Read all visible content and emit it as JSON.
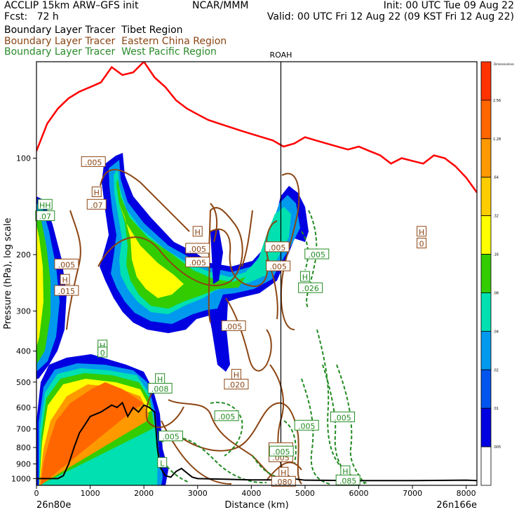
{
  "header": {
    "left_line1": "ACCLIP 15km ARW–GFS init",
    "left_line2": "Fcst:   72 h",
    "center_line1": "NCAR/MMM",
    "right_line1": "Init: 00 UTC Tue 09 Aug 22",
    "right_line2": "Valid: 00 UTC Fri 12 Aug 22 (09 KST Fri 12 Aug 22)"
  },
  "legend": {
    "tibet": "Boundary Layer Tracer  Tibet Region",
    "eastchina": "Boundary Layer Tracer  Eastern China Region",
    "wpacific": "Boundary Layer Tracer  West Pacific Region"
  },
  "colors": {
    "tropopause": "#ff0000",
    "terrain": "#000000",
    "eastchina": "#8b4513",
    "wpacific": "#228b22",
    "marker": "#000000"
  },
  "chart_data": {
    "type": "heatmap",
    "xlabel": "Distance (km)",
    "ylabel": "Pressure (hPa), log scale",
    "y_scale": "log",
    "xlim": [
      0,
      8200
    ],
    "ylim": [
      1050,
      50
    ],
    "x_ticks": [
      "0",
      "1000",
      "2000",
      "3000",
      "4000",
      "5000",
      "6000",
      "7000",
      "8000"
    ],
    "y_ticks": [
      "100",
      "200",
      "300",
      "400",
      "500",
      "600",
      "700",
      "800",
      "900",
      "1000"
    ],
    "start_label": "26n80e",
    "end_label": "26n166e",
    "marker": {
      "label": "ROAH",
      "x": 4550
    },
    "colorbar": {
      "title": "Dimensionless",
      "levels": [
        "2.56",
        "1.28",
        ".64",
        ".32",
        ".16",
        ".08",
        ".04",
        ".02",
        ".01",
        ".005"
      ],
      "colors": [
        "#ff3300",
        "#ff6600",
        "#ff9900",
        "#ffcc00",
        "#ffff00",
        "#33cc00",
        "#00e0b0",
        "#0099ee",
        "#0055ee",
        "#0000e0",
        "#ffffff"
      ]
    },
    "tropopause": {
      "name": "tropopause",
      "x": [
        0,
        200,
        400,
        600,
        800,
        1000,
        1200,
        1400,
        1600,
        1800,
        2000,
        2200,
        2400,
        2600,
        2800,
        3000,
        3200,
        3400,
        3600,
        3800,
        4000,
        4200,
        4400,
        4600,
        4800,
        5000,
        5200,
        5400,
        5600,
        5800,
        6000,
        6200,
        6400,
        6600,
        6800,
        7000,
        7200,
        7400,
        7600,
        7800,
        8000,
        8200
      ],
      "p": [
        95,
        78,
        70,
        65,
        62,
        60,
        58,
        52,
        55,
        54,
        50,
        56,
        60,
        66,
        70,
        73,
        76,
        78,
        80,
        82,
        84,
        86,
        88,
        92,
        90,
        86,
        88,
        90,
        92,
        94,
        92,
        95,
        98,
        104,
        100,
        102,
        104,
        98,
        100,
        106,
        115,
        128
      ]
    },
    "terrain": {
      "name": "terrain",
      "x": [
        0,
        200,
        400,
        500,
        600,
        700,
        800,
        900,
        1000,
        1200,
        1400,
        1500,
        1600,
        1700,
        1800,
        1900,
        2000,
        2100,
        2200,
        2250,
        2300,
        2400,
        2500,
        2600,
        2700,
        2800,
        2900,
        3000,
        3500,
        4000,
        4500,
        4650,
        4750,
        5000,
        6000,
        7000,
        8000,
        8200
      ],
      "p": [
        1000,
        1000,
        1000,
        980,
        900,
        800,
        720,
        680,
        640,
        620,
        590,
        600,
        580,
        640,
        600,
        620,
        590,
        600,
        620,
        800,
        920,
        980,
        990,
        950,
        930,
        960,
        990,
        1000,
        1005,
        1010,
        1010,
        970,
        1000,
        1012,
        1015,
        1015,
        1012,
        1015
      ]
    },
    "tracer_levels_max": {
      "tibet_boundary_layer": 1.28,
      "tibet_upper_plume": 0.32
    },
    "labels": [
      {
        "series": "eastchina",
        "text": ".005",
        "x": 1060,
        "p": 103
      },
      {
        "series": "eastchina",
        "text": "H",
        "x": 1120,
        "p": 128
      },
      {
        "series": "eastchina",
        "text": ".07",
        "x": 1120,
        "p": 140
      },
      {
        "series": "wpacific",
        "text": "HH",
        "x": 160,
        "p": 140
      },
      {
        "series": "wpacific",
        "text": ".07",
        "x": 160,
        "p": 152
      },
      {
        "series": "eastchina",
        "text": ".005",
        "x": 560,
        "p": 215
      },
      {
        "series": "eastchina",
        "text": "H",
        "x": 530,
        "p": 240
      },
      {
        "series": "eastchina",
        "text": ".015",
        "x": 560,
        "p": 260
      },
      {
        "series": "eastchina",
        "text": "H",
        "x": 3000,
        "p": 170
      },
      {
        "series": "eastchina",
        "text": ".005",
        "x": 3000,
        "p": 192
      },
      {
        "series": "eastchina",
        "text": ".005",
        "x": 3000,
        "p": 212
      },
      {
        "series": "eastchina",
        "text": ".005",
        "x": 3670,
        "p": 335
      },
      {
        "series": "eastchina",
        "text": "H",
        "x": 3720,
        "p": 475
      },
      {
        "series": "eastchina",
        "text": ".020",
        "x": 3720,
        "p": 510
      },
      {
        "series": "eastchina",
        "text": ".005",
        "x": 4500,
        "p": 218
      },
      {
        "series": "eastchina",
        "text": ".005",
        "x": 4480,
        "p": 190
      },
      {
        "series": "eastchina",
        "text": ".005",
        "x": 4550,
        "p": 805
      },
      {
        "series": "eastchina",
        "text": ".005",
        "x": 4550,
        "p": 860
      },
      {
        "series": "eastchina",
        "text": "H",
        "x": 4600,
        "p": 960
      },
      {
        "series": "eastchina",
        "text": ".080",
        "x": 4600,
        "p": 1025
      },
      {
        "series": "eastchina",
        "text": "H",
        "x": 7170,
        "p": 170
      },
      {
        "series": "eastchina",
        "text": "0",
        "x": 7170,
        "p": 185
      },
      {
        "series": "wpacific",
        "text": ".005",
        "x": 5220,
        "p": 200
      },
      {
        "series": "wpacific",
        "text": "H",
        "x": 5000,
        "p": 235
      },
      {
        "series": "wpacific",
        "text": ".026",
        "x": 5100,
        "p": 255
      },
      {
        "series": "wpacific",
        "text": "H",
        "x": 1230,
        "p": 385
      },
      {
        "series": "wpacific",
        "text": "0",
        "x": 1230,
        "p": 405
      },
      {
        "series": "wpacific",
        "text": "H",
        "x": 2300,
        "p": 490
      },
      {
        "series": "wpacific",
        "text": ".008",
        "x": 2300,
        "p": 525
      },
      {
        "series": "wpacific",
        "text": ".005",
        "x": 3540,
        "p": 640
      },
      {
        "series": "wpacific",
        "text": ".005",
        "x": 5030,
        "p": 685
      },
      {
        "series": "wpacific",
        "text": ".005",
        "x": 5700,
        "p": 645
      },
      {
        "series": "wpacific",
        "text": ".005",
        "x": 2500,
        "p": 740
      },
      {
        "series": "wpacific",
        "text": ".005",
        "x": 4560,
        "p": 825
      },
      {
        "series": "wpacific",
        "text": "L",
        "x": 2340,
        "p": 895
      },
      {
        "series": "wpacific",
        "text": "H",
        "x": 5750,
        "p": 950
      },
      {
        "series": "wpacific",
        "text": ".085",
        "x": 5800,
        "p": 1015
      }
    ]
  }
}
